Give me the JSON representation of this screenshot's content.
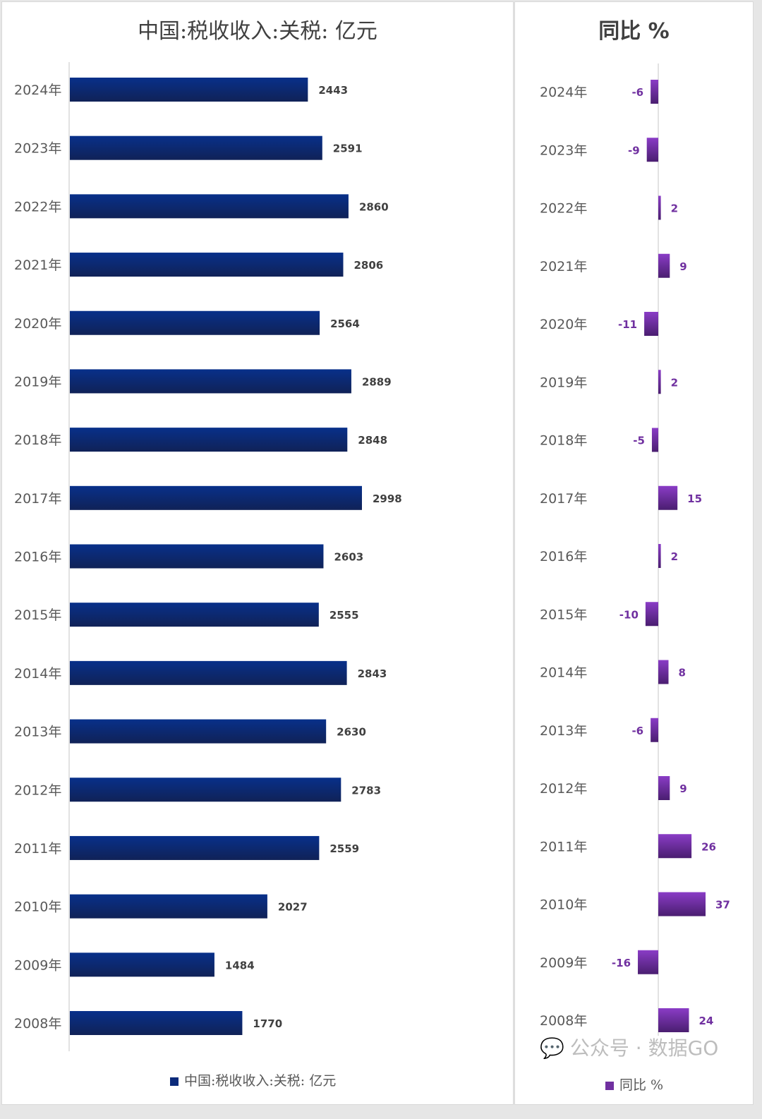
{
  "chart_data": [
    {
      "type": "bar",
      "orientation": "horizontal",
      "title": "中国:税收收入:关税: 亿元",
      "categories": [
        "2024年",
        "2023年",
        "2022年",
        "2021年",
        "2020年",
        "2019年",
        "2018年",
        "2017年",
        "2016年",
        "2015年",
        "2014年",
        "2013年",
        "2012年",
        "2011年",
        "2010年",
        "2009年",
        "2008年"
      ],
      "series": [
        {
          "name": "中国:税收收入:关税: 亿元",
          "values": [
            2443,
            2591,
            2860,
            2806,
            2564,
            2889,
            2848,
            2998,
            2603,
            2555,
            2843,
            2630,
            2783,
            2559,
            2027,
            1484,
            1770
          ]
        }
      ],
      "xlim": [
        0,
        4500
      ],
      "color": "#0b2a7a",
      "data_labels": true,
      "grid": false,
      "legend": "bottom"
    },
    {
      "type": "bar",
      "orientation": "horizontal",
      "title": "同比 %",
      "categories": [
        "2024年",
        "2023年",
        "2022年",
        "2021年",
        "2020年",
        "2019年",
        "2018年",
        "2017年",
        "2016年",
        "2015年",
        "2014年",
        "2013年",
        "2012年",
        "2011年",
        "2010年",
        "2009年",
        "2008年"
      ],
      "series": [
        {
          "name": "同比 %",
          "values": [
            -6,
            -9,
            2,
            9,
            -11,
            2,
            -5,
            15,
            2,
            -10,
            8,
            -6,
            9,
            26,
            37,
            -16,
            24
          ]
        }
      ],
      "color": "#7030a0",
      "data_labels": true,
      "grid": false,
      "legend": "bottom"
    }
  ],
  "watermark": "公众号 · 数据GO"
}
